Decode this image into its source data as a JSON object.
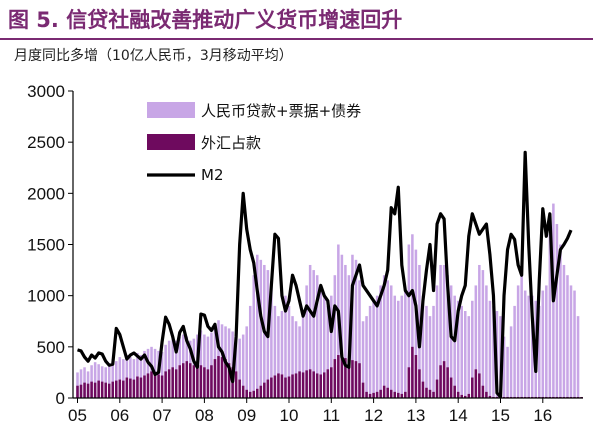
{
  "chart_data": {
    "type": "bar",
    "title": "图 5. 信贷社融改善推动广义货币增速回升",
    "ylabel": "月度同比多增（10亿人民币，3月移动平均）",
    "ylim": [
      0,
      3000
    ],
    "yticks": [
      0,
      500,
      1000,
      1500,
      2000,
      2500,
      3000
    ],
    "xticks": [
      "05",
      "06",
      "07",
      "08",
      "09",
      "10",
      "11",
      "12",
      "13",
      "14",
      "15",
      "16"
    ],
    "legend": {
      "position": "top-center"
    },
    "colors": {
      "rmb": "#c8a6e6",
      "fx": "#6e0a5e",
      "m2": "#000000",
      "title": "#7a2a72"
    },
    "series": [
      {
        "name": "人民币贷款+票据+债券",
        "type": "bar",
        "values": [
          250,
          280,
          300,
          260,
          320,
          350,
          330,
          310,
          300,
          340,
          380,
          360,
          400,
          380,
          420,
          400,
          380,
          440,
          420,
          460,
          480,
          500,
          480,
          460,
          450,
          520,
          560,
          580,
          560,
          600,
          620,
          600,
          560,
          580,
          620,
          660,
          620,
          600,
          640,
          700,
          760,
          720,
          700,
          680,
          650,
          620,
          580,
          620,
          700,
          900,
          1200,
          1400,
          1350,
          1300,
          1250,
          1100,
          900,
          800,
          850,
          1000,
          900,
          800,
          750,
          700,
          800,
          1100,
          1300,
          1250,
          1200,
          1100,
          1000,
          900,
          1000,
          1200,
          1500,
          1400,
          1300,
          1200,
          1400,
          1350,
          1150,
          750,
          800,
          900,
          950,
          1000,
          1100,
          1200,
          1150,
          1100,
          1000,
          950,
          1000,
          1050,
          1500,
          1600,
          1450,
          1300,
          1000,
          900,
          800,
          900,
          1100,
          1300,
          1300,
          1200,
          1100,
          1000,
          950,
          900,
          850,
          800,
          950,
          1100,
          1300,
          1250,
          1100,
          950,
          900,
          850,
          800,
          600,
          500,
          700,
          900,
          1100,
          1200,
          1050,
          1000,
          1000,
          950,
          900,
          1050,
          1100,
          1600,
          1900,
          1700,
          1500,
          1300,
          1200,
          1100,
          1050,
          800
        ]
      },
      {
        "name": "外汇占款",
        "type": "bar",
        "values": [
          120,
          130,
          150,
          140,
          160,
          150,
          170,
          160,
          150,
          140,
          160,
          170,
          180,
          170,
          200,
          190,
          180,
          210,
          200,
          220,
          240,
          260,
          250,
          230,
          220,
          260,
          280,
          300,
          280,
          320,
          340,
          360,
          340,
          320,
          330,
          320,
          300,
          280,
          320,
          380,
          410,
          400,
          380,
          340,
          300,
          260,
          180,
          120,
          80,
          60,
          70,
          90,
          120,
          150,
          180,
          200,
          220,
          240,
          230,
          200,
          210,
          230,
          240,
          260,
          250,
          270,
          280,
          260,
          240,
          230,
          250,
          280,
          300,
          380,
          420,
          400,
          390,
          380,
          370,
          360,
          340,
          150,
          60,
          40,
          50,
          60,
          80,
          120,
          100,
          80,
          60,
          50,
          40,
          60,
          300,
          500,
          420,
          280,
          160,
          100,
          80,
          60,
          180,
          320,
          360,
          300,
          200,
          120,
          60,
          30,
          20,
          40,
          200,
          280,
          240,
          120,
          60,
          20,
          10,
          10,
          10,
          10,
          10,
          10,
          10,
          10,
          10,
          10,
          10,
          10,
          10,
          10,
          10,
          10,
          10,
          10,
          10,
          10,
          10,
          10,
          10,
          10,
          10,
          10
        ]
      },
      {
        "name": "M2",
        "type": "line",
        "values": [
          470,
          460,
          400,
          360,
          420,
          390,
          440,
          430,
          360,
          320,
          330,
          680,
          620,
          500,
          380,
          420,
          440,
          410,
          380,
          420,
          350,
          310,
          230,
          250,
          550,
          790,
          720,
          600,
          450,
          640,
          700,
          560,
          480,
          360,
          300,
          820,
          810,
          700,
          660,
          720,
          500,
          450,
          350,
          300,
          160,
          600,
          1500,
          2000,
          1650,
          1450,
          1320,
          1050,
          800,
          650,
          600,
          1100,
          1600,
          1560,
          1000,
          850,
          950,
          1200,
          1100,
          950,
          800,
          900,
          850,
          800,
          950,
          1100,
          1000,
          950,
          650,
          900,
          850,
          400,
          320,
          300,
          1100,
          1200,
          1300,
          1100,
          1050,
          1000,
          950,
          900,
          1000,
          1100,
          1250,
          1860,
          1800,
          2060,
          1300,
          1050,
          1000,
          1050,
          900,
          500,
          950,
          1250,
          1500,
          1050,
          1700,
          1800,
          1750,
          1100,
          600,
          560,
          850,
          1000,
          1100,
          1580,
          1800,
          1700,
          1600,
          1650,
          1700,
          1400,
          1000,
          50,
          10,
          1000,
          1450,
          1600,
          1550,
          1300,
          1200,
          2400,
          1500,
          800,
          260,
          1150,
          1850,
          1580,
          1800,
          950,
          1200,
          1450,
          1500,
          1560,
          1640
        ]
      }
    ]
  }
}
